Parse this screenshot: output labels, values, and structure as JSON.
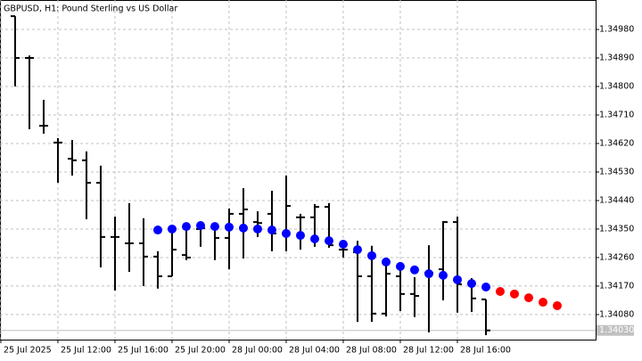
{
  "chart_data": {
    "type": "ohlc",
    "title": "GBPUSD, H1:  Pound Sterling vs US Dollar",
    "color": "#000000",
    "grid": true,
    "ylim": [
      1.34001,
      1.35073
    ],
    "yticks": [
      {
        "value": 1.3498,
        "label": "1.34980"
      },
      {
        "value": 1.3489,
        "label": "1.34890"
      },
      {
        "value": 1.348,
        "label": "1.34800"
      },
      {
        "value": 1.3471,
        "label": "1.34710"
      },
      {
        "value": 1.3462,
        "label": "1.34620"
      },
      {
        "value": 1.3453,
        "label": "1.34530"
      },
      {
        "value": 1.3444,
        "label": "1.34440"
      },
      {
        "value": 1.3435,
        "label": "1.34350"
      },
      {
        "value": 1.3426,
        "label": "1.34260"
      },
      {
        "value": 1.3417,
        "label": "1.34170"
      },
      {
        "value": 1.3408,
        "label": "1.34080"
      }
    ],
    "xlim": [
      -1.06,
      40.69
    ],
    "xticks": [
      {
        "value": -1,
        "label": "25 Jul 2025"
      },
      {
        "value": 3,
        "label": "25 Jul 12:00"
      },
      {
        "value": 7,
        "label": "25 Jul 16:00"
      },
      {
        "value": 11,
        "label": "25 Jul 20:00"
      },
      {
        "value": 15,
        "label": "28 Jul 00:00"
      },
      {
        "value": 19,
        "label": "28 Jul 04:00"
      },
      {
        "value": 23,
        "label": "28 Jul 08:00"
      },
      {
        "value": 27,
        "label": "28 Jul 12:00"
      },
      {
        "value": 31,
        "label": "28 Jul 16:00"
      }
    ],
    "open": [
      1.35022,
      1.3489,
      1.34676,
      1.34623,
      1.34572,
      1.34567,
      1.34496,
      1.34325,
      1.34305,
      1.34305,
      1.34263,
      1.34201,
      1.34268,
      1.3435,
      1.34356,
      1.34322,
      1.34398,
      1.34372,
      1.34398,
      1.34336,
      1.34387,
      1.34387,
      1.3442,
      1.34285,
      1.34277,
      1.34201,
      1.34083,
      1.34201,
      1.34145,
      1.34212,
      1.34223,
      1.34372,
      1.34178,
      1.34128
    ],
    "high": [
      1.35022,
      1.34898,
      1.34758,
      1.34637,
      1.34631,
      1.34595,
      1.3455,
      1.34389,
      1.34432,
      1.34384,
      1.3428,
      1.34361,
      1.3437,
      1.34364,
      1.34364,
      1.34415,
      1.34479,
      1.34406,
      1.34471,
      1.34519,
      1.34398,
      1.34429,
      1.34432,
      1.34313,
      1.34313,
      1.34297,
      1.34249,
      1.34237,
      1.34198,
      1.34299,
      1.34375,
      1.34389,
      1.34195,
      1.34128
    ],
    "low": [
      1.348,
      1.34665,
      1.34651,
      1.34496,
      1.34519,
      1.34381,
      1.34229,
      1.34156,
      1.34215,
      1.3417,
      1.34162,
      1.34201,
      1.34252,
      1.34294,
      1.34252,
      1.34223,
      1.34257,
      1.34325,
      1.3428,
      1.3428,
      1.34285,
      1.34294,
      1.34291,
      1.3426,
      1.34057,
      1.34057,
      1.34074,
      1.34091,
      1.34072,
      1.34024,
      1.34125,
      1.34086,
      1.34088,
      1.34015
    ],
    "close": [
      1.3489,
      1.3489,
      1.34676,
      1.34623,
      1.34567,
      1.34496,
      1.34325,
      1.34325,
      1.34305,
      1.34263,
      1.34201,
      1.34285,
      1.3426,
      1.34353,
      1.34322,
      1.34398,
      1.34412,
      1.34369,
      1.34336,
      1.34423,
      1.34387,
      1.3442,
      1.34299,
      1.34285,
      1.34201,
      1.34083,
      1.34209,
      1.34145,
      1.34139,
      1.34212,
      1.34372,
      1.34176,
      1.34131,
      1.3403
    ],
    "overlays": [
      {
        "color": "#0000ff",
        "values": [
          null,
          null,
          null,
          null,
          null,
          null,
          null,
          null,
          null,
          null,
          1.34347,
          1.3435,
          1.34358,
          1.34361,
          1.34358,
          1.34356,
          1.34353,
          1.3435,
          1.34347,
          1.34336,
          1.3433,
          1.34319,
          1.34313,
          1.34302,
          1.34285,
          1.34266,
          1.34246,
          1.34232,
          1.34221,
          1.34209,
          1.34204,
          1.3419,
          1.34178,
          1.34167,
          null,
          null,
          null,
          null,
          null
        ]
      },
      {
        "color": "#ff0000",
        "values": [
          null,
          null,
          null,
          null,
          null,
          null,
          null,
          null,
          null,
          null,
          null,
          null,
          null,
          null,
          null,
          null,
          null,
          null,
          null,
          null,
          null,
          null,
          null,
          null,
          null,
          null,
          null,
          null,
          null,
          null,
          null,
          null,
          null,
          null,
          1.34153,
          1.34145,
          1.34133,
          1.34119,
          1.34108
        ]
      }
    ],
    "last_price": {
      "value": 1.3403,
      "label": "1.34030"
    }
  }
}
